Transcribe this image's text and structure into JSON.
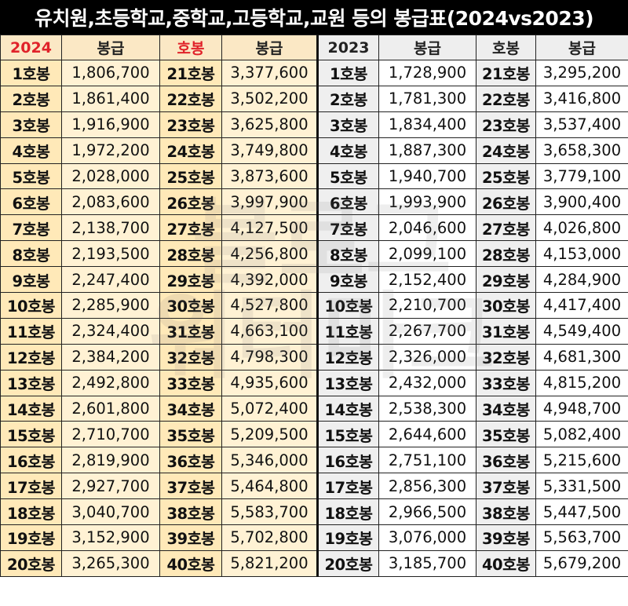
{
  "title": "유치원,초등학교,중학교,고등학교,교원 등의 봉급표(2024vs2023)",
  "headers": [
    "2024",
    "봉급",
    "호봉",
    "봉급",
    "2023",
    "봉급",
    "호봉",
    "봉급"
  ],
  "rows": [
    [
      "1호봉",
      "1,806,700",
      "21호봉",
      "3,377,600",
      "1호봉",
      "1,728,900",
      "21호봉",
      "3,295,200"
    ],
    [
      "2호봉",
      "1,861,400",
      "22호봉",
      "3,502,200",
      "2호봉",
      "1,781,300",
      "22호봉",
      "3,416,800"
    ],
    [
      "3호봉",
      "1,916,900",
      "23호봉",
      "3,625,800",
      "3호봉",
      "1,834,400",
      "23호봉",
      "3,537,400"
    ],
    [
      "4호봉",
      "1,972,200",
      "24호봉",
      "3,749,800",
      "4호봉",
      "1,887,300",
      "24호봉",
      "3,658,300"
    ],
    [
      "5호봉",
      "2,028,000",
      "25호봉",
      "3,873,600",
      "5호봉",
      "1,940,700",
      "25호봉",
      "3,779,100"
    ],
    [
      "6호봉",
      "2,083,600",
      "26호봉",
      "3,997,900",
      "6호봉",
      "1,993,900",
      "26호봉",
      "3,900,400"
    ],
    [
      "7호봉",
      "2,138,700",
      "27호봉",
      "4,127,500",
      "7호봉",
      "2,046,600",
      "27호봉",
      "4,026,800"
    ],
    [
      "8호봉",
      "2,193,500",
      "28호봉",
      "4,256,800",
      "8호봉",
      "2,099,100",
      "28호봉",
      "4,153,000"
    ],
    [
      "9호봉",
      "2,247,400",
      "29호봉",
      "4,392,000",
      "9호봉",
      "2,152,400",
      "29호봉",
      "4,284,900"
    ],
    [
      "10호봉",
      "2,285,900",
      "30호봉",
      "4,527,800",
      "10호봉",
      "2,210,700",
      "30호봉",
      "4,417,400"
    ],
    [
      "11호봉",
      "2,324,400",
      "31호봉",
      "4,663,100",
      "11호봉",
      "2,267,700",
      "31호봉",
      "4,549,400"
    ],
    [
      "12호봉",
      "2,384,200",
      "32호봉",
      "4,798,300",
      "12호봉",
      "2,326,000",
      "32호봉",
      "4,681,300"
    ],
    [
      "13호봉",
      "2,492,800",
      "33호봉",
      "4,935,600",
      "13호봉",
      "2,432,000",
      "33호봉",
      "4,815,200"
    ],
    [
      "14호봉",
      "2,601,800",
      "34호봉",
      "5,072,400",
      "14호봉",
      "2,538,300",
      "34호봉",
      "4,948,700"
    ],
    [
      "15호봉",
      "2,710,700",
      "35호봉",
      "5,209,500",
      "15호봉",
      "2,644,600",
      "35호봉",
      "5,082,400"
    ],
    [
      "16호봉",
      "2,819,900",
      "36호봉",
      "5,346,000",
      "16호봉",
      "2,751,100",
      "36호봉",
      "5,215,600"
    ],
    [
      "17호봉",
      "2,927,700",
      "37호봉",
      "5,464,800",
      "17호봉",
      "2,856,300",
      "37호봉",
      "5,331,500"
    ],
    [
      "18호봉",
      "3,040,700",
      "38호봉",
      "5,583,700",
      "18호봉",
      "2,966,500",
      "38호봉",
      "5,447,500"
    ],
    [
      "19호봉",
      "3,152,900",
      "39호봉",
      "5,702,800",
      "19호봉",
      "3,076,000",
      "39호봉",
      "5,563,700"
    ],
    [
      "20호봉",
      "3,265,300",
      "40호봉",
      "5,821,200",
      "20호봉",
      "3,185,700",
      "40호봉",
      "5,679,200"
    ]
  ],
  "colors": {
    "title_bg": "#000000",
    "accent_red": "#e0222a",
    "year2024_bg": "#fff2d4",
    "year2023_bg": "#efefef"
  }
}
